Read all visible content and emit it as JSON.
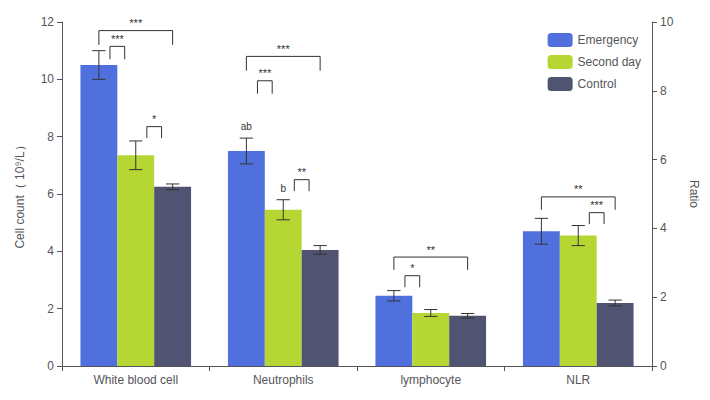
{
  "chart_data": {
    "type": "bar",
    "categories": [
      "White blood cell",
      "Neutrophils",
      "lymphocyte",
      "NLR"
    ],
    "series": [
      {
        "name": "Emergency",
        "values": [
          10.5,
          7.5,
          2.45,
          4.7
        ],
        "errors": [
          0.5,
          0.45,
          0.18,
          0.45
        ]
      },
      {
        "name": "Second day",
        "values": [
          7.35,
          5.45,
          1.85,
          4.55
        ],
        "errors": [
          0.5,
          0.35,
          0.12,
          0.35
        ]
      },
      {
        "name": "Control",
        "values": [
          6.25,
          4.05,
          1.75,
          2.2
        ],
        "errors": [
          0.1,
          0.15,
          0.08,
          0.1
        ]
      }
    ],
    "ylabel": "Cell count（ 10⁹/L）",
    "ylabel2": "Ratio",
    "ylim": [
      0,
      12
    ],
    "yticks": [
      0,
      2,
      4,
      6,
      8,
      10,
      12
    ],
    "y2lim": [
      0,
      10
    ],
    "y2ticks": [
      0,
      2,
      4,
      6,
      8,
      10
    ],
    "grid": false,
    "legend": "upper right",
    "annotations": [
      {
        "text": "***",
        "category": "White blood cell",
        "from": "Emergency",
        "to": "Control",
        "y_bottom": 11.2,
        "y": 11.7
      },
      {
        "text": "***",
        "category": "White blood cell",
        "from": "Emergency",
        "to": "Second day",
        "y_bottom": 10.7,
        "y": 11.15
      },
      {
        "text": "*",
        "category": "White blood cell",
        "from": "Second day",
        "to": "Control",
        "y_bottom": 7.95,
        "y": 8.35
      },
      {
        "text": "***",
        "category": "Neutrophils",
        "from": "Emergency",
        "to": "Control",
        "y_bottom": 10.3,
        "y": 10.8
      },
      {
        "text": "***",
        "category": "Neutrophils",
        "from": "Emergency",
        "to": "Second day",
        "y_bottom": 9.5,
        "y": 9.95
      },
      {
        "text": "**",
        "category": "Neutrophils",
        "from": "Second day",
        "to": "Control",
        "y_bottom": 6.1,
        "y": 6.5
      },
      {
        "text": "ab",
        "category": "Neutrophils",
        "series": "Emergency",
        "y": 8.1
      },
      {
        "text": "b",
        "category": "Neutrophils",
        "series": "Second day",
        "y": 5.95
      },
      {
        "text": "**",
        "category": "lymphocyte",
        "from": "Emergency",
        "to": "Control",
        "y_bottom": 3.35,
        "y": 3.8
      },
      {
        "text": "*",
        "category": "lymphocyte",
        "from": "Emergency",
        "to": "Second day",
        "y_bottom": 2.75,
        "y": 3.15
      },
      {
        "text": "**",
        "category": "NLR",
        "from": "Emergency",
        "to": "Control",
        "y_bottom": 5.45,
        "y": 5.9
      },
      {
        "text": "***",
        "category": "NLR",
        "from": "Second day",
        "to": "Control",
        "y_bottom": 4.95,
        "y": 5.35
      }
    ]
  }
}
